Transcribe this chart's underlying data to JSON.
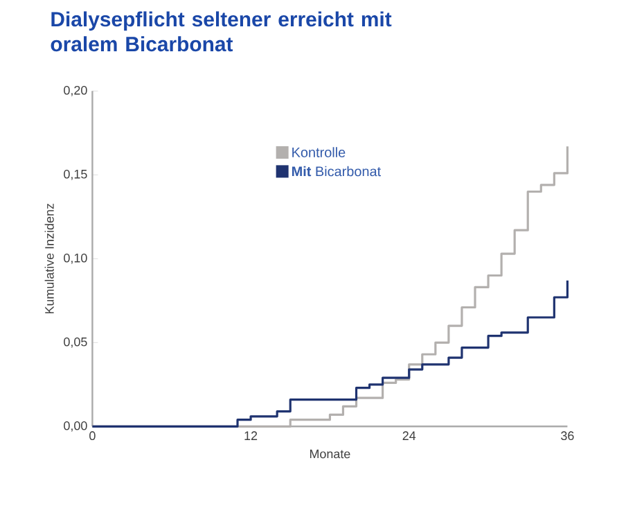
{
  "chart_data": {
    "type": "step",
    "title": "Dialysepflicht seltener erreicht mit oralem Bicarbonat",
    "xlabel": "Monate",
    "ylabel": "Kumulative Inzidenz",
    "xlim": [
      0,
      36
    ],
    "ylim": [
      0,
      0.2
    ],
    "xticks": [
      0,
      12,
      24,
      36
    ],
    "yticks": [
      {
        "value": 0,
        "label": "0,00"
      },
      {
        "value": 0.05,
        "label": "0,05"
      },
      {
        "value": 0.1,
        "label": "0,10"
      },
      {
        "value": 0.15,
        "label": "0,15"
      },
      {
        "value": 0.2,
        "label": "0,20"
      }
    ],
    "grid": false,
    "legend": "top",
    "marker": "none",
    "line_style": "solid",
    "series": [
      {
        "name": "Kontrolle",
        "color": "#b3b0ae",
        "x": [
          0,
          15,
          18,
          19,
          20,
          22,
          23,
          24,
          25,
          26,
          27,
          28,
          29,
          30,
          31,
          32,
          33,
          34,
          35,
          36
        ],
        "values": [
          0,
          0.004,
          0.007,
          0.012,
          0.017,
          0.026,
          0.028,
          0.037,
          0.043,
          0.05,
          0.06,
          0.071,
          0.083,
          0.09,
          0.103,
          0.117,
          0.14,
          0.144,
          0.151,
          0.167
        ]
      },
      {
        "name": "**Mit** Bicarbonat",
        "color": "#1f3370",
        "x": [
          0,
          11,
          12,
          14,
          15,
          20,
          21,
          22,
          24,
          25,
          27,
          28,
          30,
          31,
          33,
          35,
          36
        ],
        "values": [
          0,
          0.004,
          0.006,
          0.009,
          0.016,
          0.023,
          0.025,
          0.029,
          0.034,
          0.037,
          0.041,
          0.047,
          0.054,
          0.056,
          0.065,
          0.077,
          0.087
        ]
      }
    ]
  }
}
